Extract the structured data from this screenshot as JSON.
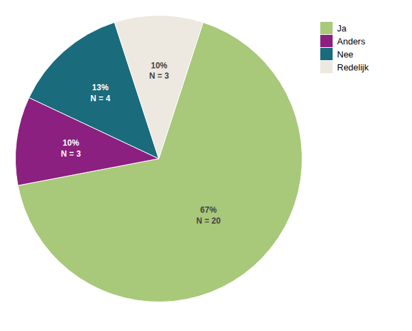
{
  "chart_data": {
    "type": "pie",
    "categories": [
      "Ja",
      "Anders",
      "Nee",
      "Redelijk"
    ],
    "values": [
      67,
      10,
      13,
      10
    ],
    "value_labels": [
      "67%\nN = 20",
      "10%\nN = 3",
      "13%\nN = 4",
      "10%\nN = 3"
    ],
    "colors": [
      "#a8c87a",
      "#8b2080",
      "#1a6b7c",
      "#ede8e0"
    ],
    "data_labels": true,
    "legend": "right"
  }
}
